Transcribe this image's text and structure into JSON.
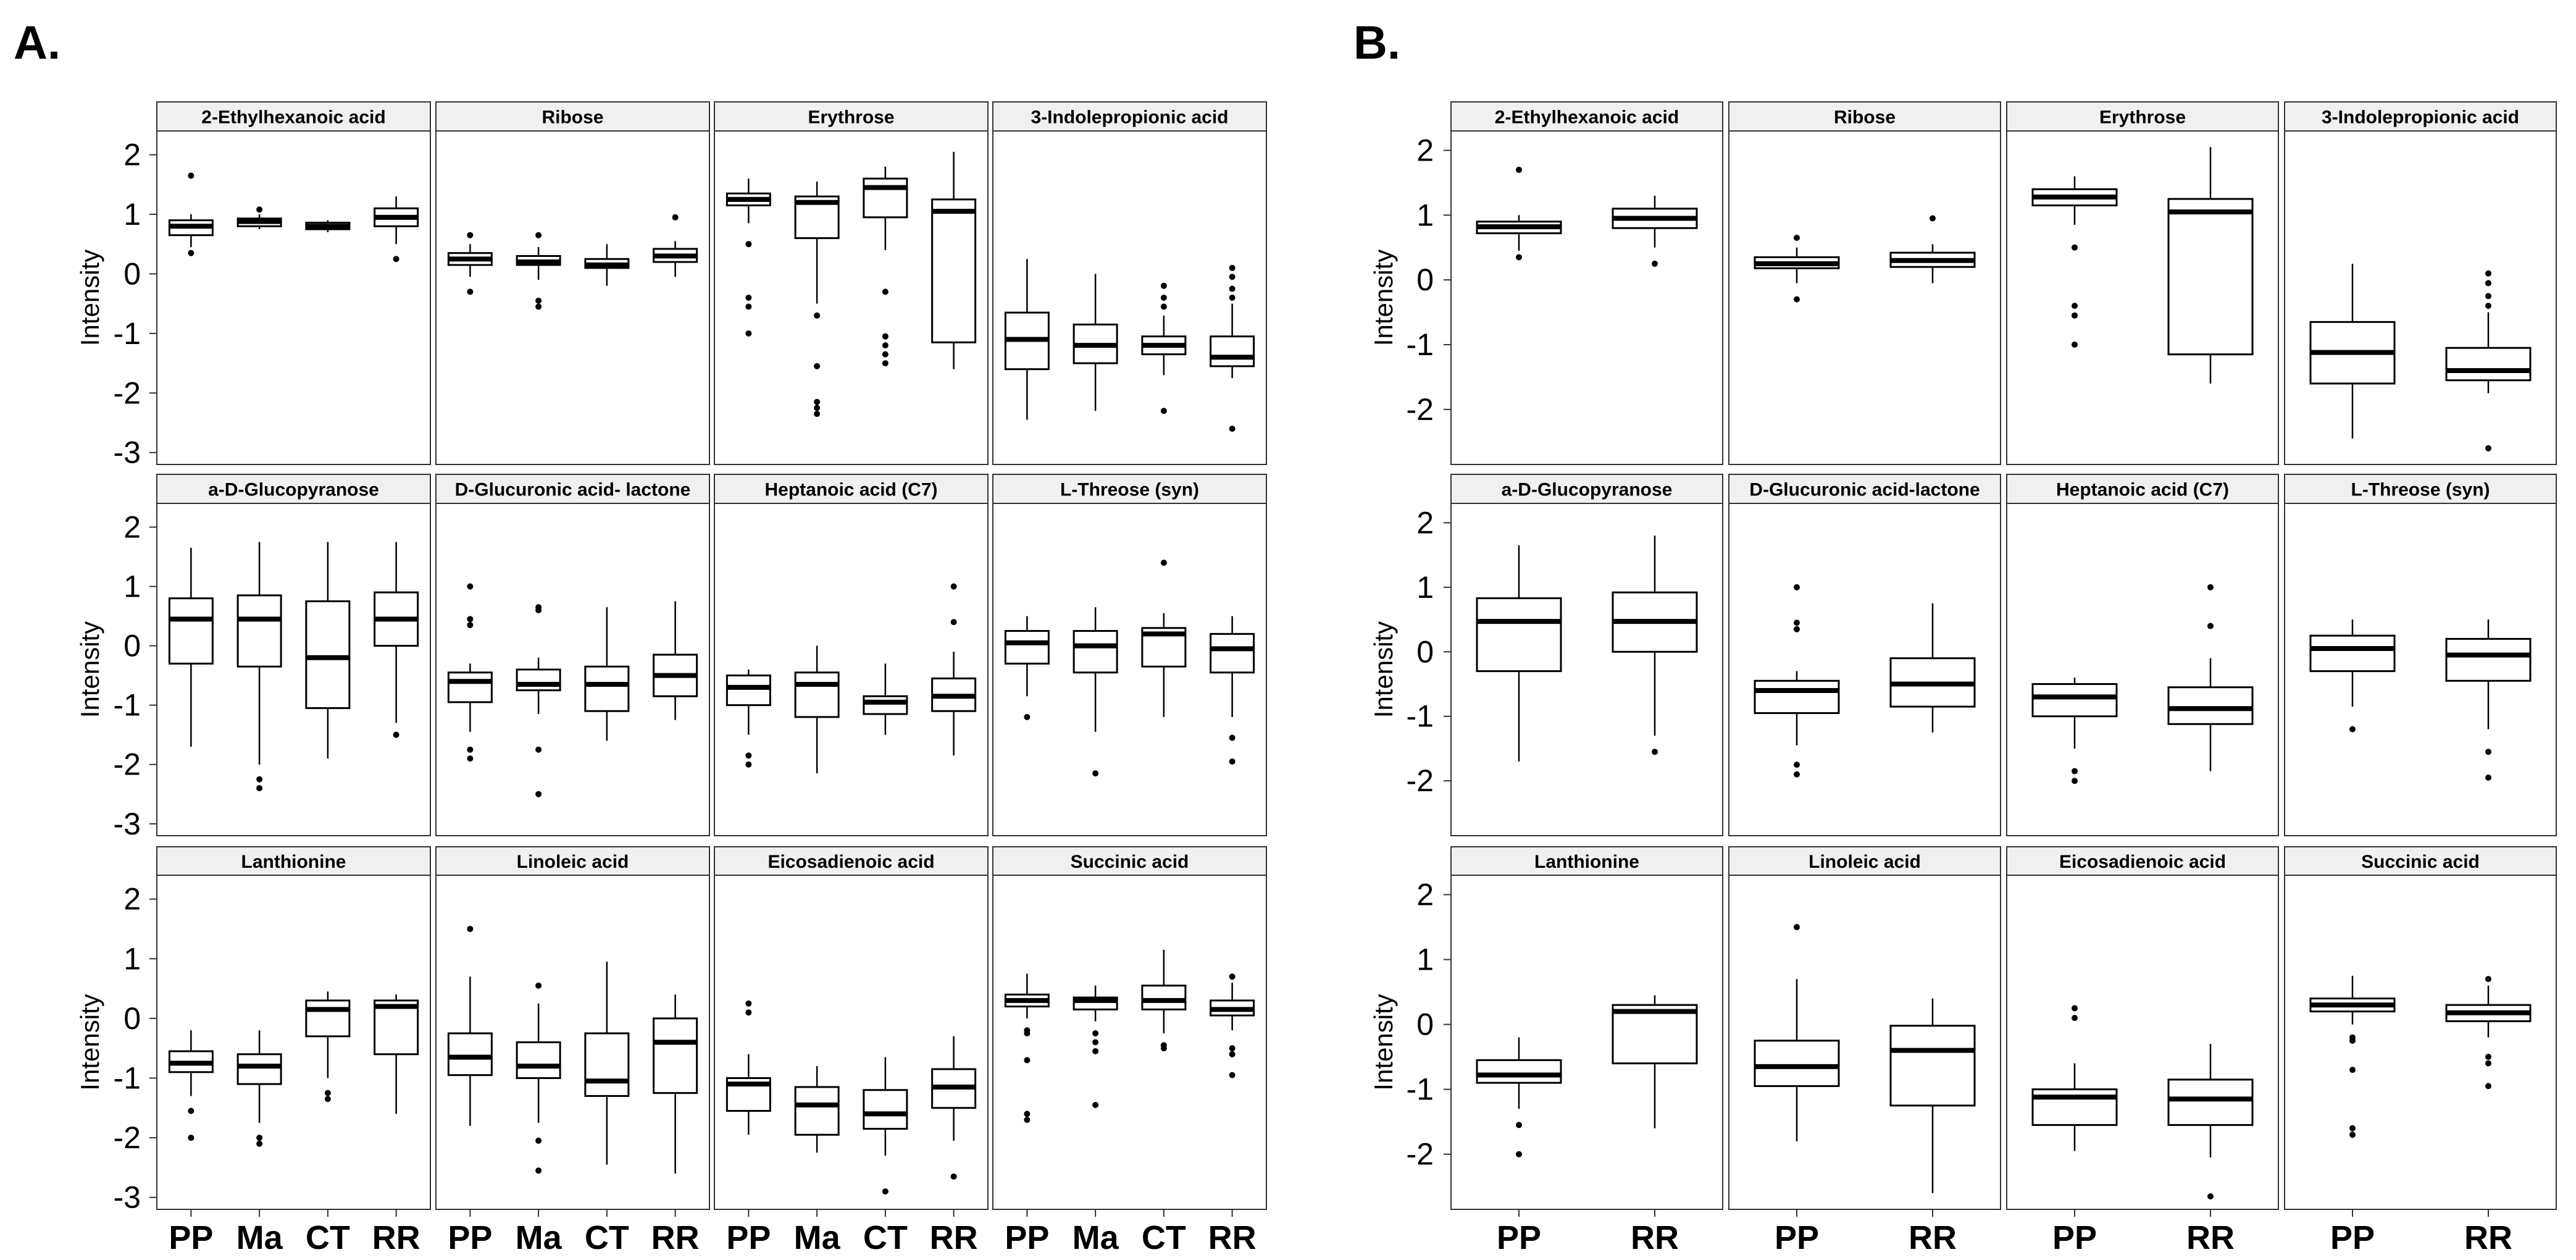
{
  "figure": {
    "panel_labels": [
      "A.",
      "B."
    ]
  },
  "chart_data": [
    {
      "type": "boxplot",
      "panel": "A.",
      "ylabel": "Intensity",
      "ylim": [
        -3.2,
        2.4
      ],
      "yticks": [
        -3,
        -2,
        -1,
        0,
        1,
        2
      ],
      "groups": [
        "PP",
        "Ma",
        "CT",
        "RR"
      ],
      "facets": [
        {
          "title": "2-Ethylhexanoic acid",
          "boxes": [
            {
              "q1": 0.65,
              "median": 0.8,
              "q3": 0.9,
              "lo": 0.45,
              "hi": 1.0,
              "out": [
                1.65,
                0.35
              ]
            },
            {
              "q1": 0.8,
              "median": 0.88,
              "q3": 0.93,
              "lo": 0.75,
              "hi": 1.0,
              "out": [
                1.08
              ]
            },
            {
              "q1": 0.75,
              "median": 0.8,
              "q3": 0.86,
              "lo": 0.7,
              "hi": 0.9,
              "out": []
            },
            {
              "q1": 0.8,
              "median": 0.95,
              "q3": 1.1,
              "lo": 0.5,
              "hi": 1.3,
              "out": [
                0.25
              ]
            }
          ]
        },
        {
          "title": "Ribose",
          "boxes": [
            {
              "q1": 0.15,
              "median": 0.25,
              "q3": 0.35,
              "lo": -0.05,
              "hi": 0.5,
              "out": [
                0.65,
                -0.3
              ]
            },
            {
              "q1": 0.15,
              "median": 0.2,
              "q3": 0.3,
              "lo": -0.1,
              "hi": 0.45,
              "out": [
                0.65,
                -0.45,
                -0.55
              ]
            },
            {
              "q1": 0.1,
              "median": 0.15,
              "q3": 0.25,
              "lo": -0.2,
              "hi": 0.5,
              "out": []
            },
            {
              "q1": 0.2,
              "median": 0.3,
              "q3": 0.42,
              "lo": -0.05,
              "hi": 0.55,
              "out": [
                0.95
              ]
            }
          ]
        },
        {
          "title": "Erythrose",
          "boxes": [
            {
              "q1": 1.15,
              "median": 1.25,
              "q3": 1.35,
              "lo": 0.85,
              "hi": 1.6,
              "out": [
                0.5,
                -0.4,
                -0.55,
                -1.0
              ]
            },
            {
              "q1": 0.6,
              "median": 1.2,
              "q3": 1.3,
              "lo": -0.5,
              "hi": 1.55,
              "out": [
                -0.7,
                -1.55,
                -2.15,
                -2.25,
                -2.35
              ]
            },
            {
              "q1": 0.95,
              "median": 1.45,
              "q3": 1.6,
              "lo": 0.4,
              "hi": 1.8,
              "out": [
                -0.3,
                -1.05,
                -1.2,
                -1.35,
                -1.5
              ]
            },
            {
              "q1": -1.15,
              "median": 1.05,
              "q3": 1.25,
              "lo": -1.6,
              "hi": 2.05,
              "out": []
            }
          ]
        },
        {
          "title": "3-Indolepropionic acid",
          "boxes": [
            {
              "q1": -1.6,
              "median": -1.1,
              "q3": -0.65,
              "lo": -2.45,
              "hi": 0.25,
              "out": []
            },
            {
              "q1": -1.5,
              "median": -1.2,
              "q3": -0.85,
              "lo": -2.3,
              "hi": 0.0,
              "out": []
            },
            {
              "q1": -1.35,
              "median": -1.2,
              "q3": -1.05,
              "lo": -1.7,
              "hi": -0.7,
              "out": [
                -0.2,
                -0.4,
                -0.55,
                -2.3
              ]
            },
            {
              "q1": -1.55,
              "median": -1.4,
              "q3": -1.05,
              "lo": -1.75,
              "hi": -0.5,
              "out": [
                0.1,
                -0.05,
                -0.25,
                -0.4,
                -2.6
              ]
            }
          ]
        },
        {
          "title": "a-D-Glucopyranose",
          "boxes": [
            {
              "q1": -0.3,
              "median": 0.45,
              "q3": 0.8,
              "lo": -1.7,
              "hi": 1.65,
              "out": []
            },
            {
              "q1": -0.35,
              "median": 0.45,
              "q3": 0.85,
              "lo": -2.0,
              "hi": 1.75,
              "out": [
                -2.25,
                -2.4
              ]
            },
            {
              "q1": -1.05,
              "median": -0.2,
              "q3": 0.75,
              "lo": -1.9,
              "hi": 1.75,
              "out": []
            },
            {
              "q1": 0.0,
              "median": 0.45,
              "q3": 0.9,
              "lo": -1.3,
              "hi": 1.75,
              "out": [
                -1.5
              ]
            }
          ]
        },
        {
          "title": "D-Glucuronic acid- lactone",
          "boxes": [
            {
              "q1": -0.95,
              "median": -0.6,
              "q3": -0.45,
              "lo": -1.45,
              "hi": -0.3,
              "out": [
                1.0,
                0.45,
                0.35,
                -1.75,
                -1.9
              ]
            },
            {
              "q1": -0.75,
              "median": -0.65,
              "q3": -0.4,
              "lo": -1.15,
              "hi": -0.2,
              "out": [
                0.65,
                0.6,
                -1.75,
                -2.5
              ]
            },
            {
              "q1": -1.1,
              "median": -0.65,
              "q3": -0.35,
              "lo": -1.6,
              "hi": 0.65,
              "out": []
            },
            {
              "q1": -0.85,
              "median": -0.5,
              "q3": -0.15,
              "lo": -1.25,
              "hi": 0.75,
              "out": []
            }
          ]
        },
        {
          "title": "Heptanoic acid (C7)",
          "boxes": [
            {
              "q1": -1.0,
              "median": -0.7,
              "q3": -0.5,
              "lo": -1.5,
              "hi": -0.4,
              "out": [
                -1.85,
                -2.0
              ]
            },
            {
              "q1": -1.2,
              "median": -0.65,
              "q3": -0.45,
              "lo": -2.15,
              "hi": 0.0,
              "out": []
            },
            {
              "q1": -1.15,
              "median": -0.95,
              "q3": -0.85,
              "lo": -1.5,
              "hi": -0.3,
              "out": []
            },
            {
              "q1": -1.1,
              "median": -0.85,
              "q3": -0.55,
              "lo": -1.85,
              "hi": -0.1,
              "out": [
                1.0,
                0.4
              ]
            }
          ]
        },
        {
          "title": "L-Threose (syn)",
          "boxes": [
            {
              "q1": -0.3,
              "median": 0.05,
              "q3": 0.25,
              "lo": -0.85,
              "hi": 0.5,
              "out": [
                -1.2
              ]
            },
            {
              "q1": -0.45,
              "median": 0.0,
              "q3": 0.25,
              "lo": -1.45,
              "hi": 0.65,
              "out": [
                -2.15
              ]
            },
            {
              "q1": -0.35,
              "median": 0.2,
              "q3": 0.3,
              "lo": -1.2,
              "hi": 0.55,
              "out": [
                1.4
              ]
            },
            {
              "q1": -0.45,
              "median": -0.05,
              "q3": 0.2,
              "lo": -1.2,
              "hi": 0.5,
              "out": [
                -1.55,
                -1.95
              ]
            }
          ]
        },
        {
          "title": "Lanthionine",
          "boxes": [
            {
              "q1": -0.9,
              "median": -0.75,
              "q3": -0.55,
              "lo": -1.3,
              "hi": -0.2,
              "out": [
                -1.55,
                -2.0
              ]
            },
            {
              "q1": -1.1,
              "median": -0.8,
              "q3": -0.6,
              "lo": -1.75,
              "hi": -0.2,
              "out": [
                -2.0,
                -2.1
              ]
            },
            {
              "q1": -0.3,
              "median": 0.15,
              "q3": 0.3,
              "lo": -1.0,
              "hi": 0.45,
              "out": [
                -1.25,
                -1.35
              ]
            },
            {
              "q1": -0.6,
              "median": 0.2,
              "q3": 0.3,
              "lo": -1.6,
              "hi": 0.4,
              "out": []
            }
          ]
        },
        {
          "title": "Linoleic acid",
          "boxes": [
            {
              "q1": -0.95,
              "median": -0.65,
              "q3": -0.25,
              "lo": -1.8,
              "hi": 0.7,
              "out": [
                1.5
              ]
            },
            {
              "q1": -1.0,
              "median": -0.8,
              "q3": -0.4,
              "lo": -1.75,
              "hi": 0.25,
              "out": [
                0.55,
                -2.05,
                -2.55
              ]
            },
            {
              "q1": -1.3,
              "median": -1.05,
              "q3": -0.25,
              "lo": -2.45,
              "hi": 0.95,
              "out": []
            },
            {
              "q1": -1.25,
              "median": -0.4,
              "q3": 0.0,
              "lo": -2.6,
              "hi": 0.4,
              "out": []
            }
          ]
        },
        {
          "title": "Eicosadienoic acid",
          "boxes": [
            {
              "q1": -1.55,
              "median": -1.1,
              "q3": -1.0,
              "lo": -1.95,
              "hi": -0.6,
              "out": [
                0.25,
                0.1
              ]
            },
            {
              "q1": -1.95,
              "median": -1.45,
              "q3": -1.15,
              "lo": -2.25,
              "hi": -0.8,
              "out": []
            },
            {
              "q1": -1.85,
              "median": -1.6,
              "q3": -1.2,
              "lo": -2.3,
              "hi": -0.65,
              "out": [
                -2.9
              ]
            },
            {
              "q1": -1.5,
              "median": -1.15,
              "q3": -0.85,
              "lo": -2.05,
              "hi": -0.3,
              "out": [
                -2.65
              ]
            }
          ]
        },
        {
          "title": "Succinic acid",
          "boxes": [
            {
              "q1": 0.2,
              "median": 0.3,
              "q3": 0.4,
              "lo": 0.0,
              "hi": 0.75,
              "out": [
                -0.2,
                -0.25,
                -0.7,
                -1.6,
                -1.7
              ]
            },
            {
              "q1": 0.15,
              "median": 0.3,
              "q3": 0.35,
              "lo": -0.05,
              "hi": 0.55,
              "out": [
                -0.25,
                -0.4,
                -0.55,
                -1.45
              ]
            },
            {
              "q1": 0.15,
              "median": 0.3,
              "q3": 0.55,
              "lo": -0.25,
              "hi": 1.15,
              "out": [
                -0.45,
                -0.5
              ]
            },
            {
              "q1": 0.05,
              "median": 0.15,
              "q3": 0.3,
              "lo": -0.2,
              "hi": 0.6,
              "out": [
                0.7,
                -0.5,
                -0.6,
                -0.95
              ]
            }
          ]
        }
      ]
    },
    {
      "type": "boxplot",
      "panel": "B.",
      "ylabel": "Intensity",
      "ylim": [
        -2.85,
        2.3
      ],
      "yticks": [
        -2,
        -1,
        0,
        1,
        2
      ],
      "groups": [
        "PP",
        "RR"
      ],
      "facets": [
        {
          "title": "2-Ethylhexanoic acid",
          "boxes": [
            {
              "q1": 0.72,
              "median": 0.82,
              "q3": 0.9,
              "lo": 0.45,
              "hi": 1.0,
              "out": [
                1.7,
                0.35
              ]
            },
            {
              "q1": 0.8,
              "median": 0.95,
              "q3": 1.1,
              "lo": 0.5,
              "hi": 1.3,
              "out": [
                0.25
              ]
            }
          ]
        },
        {
          "title": "Ribose",
          "boxes": [
            {
              "q1": 0.18,
              "median": 0.25,
              "q3": 0.35,
              "lo": -0.05,
              "hi": 0.5,
              "out": [
                0.65,
                -0.3
              ]
            },
            {
              "q1": 0.2,
              "median": 0.3,
              "q3": 0.42,
              "lo": -0.05,
              "hi": 0.55,
              "out": [
                0.95
              ]
            }
          ]
        },
        {
          "title": "Erythrose",
          "boxes": [
            {
              "q1": 1.15,
              "median": 1.28,
              "q3": 1.4,
              "lo": 0.85,
              "hi": 1.6,
              "out": [
                0.5,
                -0.4,
                -0.55,
                -1.0
              ]
            },
            {
              "q1": -1.15,
              "median": 1.05,
              "q3": 1.25,
              "lo": -1.6,
              "hi": 2.05,
              "out": []
            }
          ]
        },
        {
          "title": "3-Indolepropionic acid",
          "boxes": [
            {
              "q1": -1.6,
              "median": -1.12,
              "q3": -0.65,
              "lo": -2.45,
              "hi": 0.25,
              "out": []
            },
            {
              "q1": -1.55,
              "median": -1.4,
              "q3": -1.05,
              "lo": -1.75,
              "hi": -0.5,
              "out": [
                0.1,
                -0.05,
                -0.25,
                -0.4,
                -2.6
              ]
            }
          ]
        },
        {
          "title": "a-D-Glucopyranose",
          "boxes": [
            {
              "q1": -0.3,
              "median": 0.47,
              "q3": 0.83,
              "lo": -1.7,
              "hi": 1.65,
              "out": []
            },
            {
              "q1": 0.0,
              "median": 0.47,
              "q3": 0.92,
              "lo": -1.3,
              "hi": 1.8,
              "out": [
                -1.55
              ]
            }
          ]
        },
        {
          "title": "D-Glucuronic acid-lactone",
          "boxes": [
            {
              "q1": -0.95,
              "median": -0.6,
              "q3": -0.45,
              "lo": -1.45,
              "hi": -0.3,
              "out": [
                1.0,
                0.45,
                0.35,
                -1.75,
                -1.9
              ]
            },
            {
              "q1": -0.85,
              "median": -0.5,
              "q3": -0.1,
              "lo": -1.25,
              "hi": 0.75,
              "out": []
            }
          ]
        },
        {
          "title": "Heptanoic acid (C7)",
          "boxes": [
            {
              "q1": -1.0,
              "median": -0.7,
              "q3": -0.5,
              "lo": -1.5,
              "hi": -0.4,
              "out": [
                -1.85,
                -2.0
              ]
            },
            {
              "q1": -1.12,
              "median": -0.88,
              "q3": -0.55,
              "lo": -1.85,
              "hi": -0.1,
              "out": [
                1.0,
                0.4
              ]
            }
          ]
        },
        {
          "title": "L-Threose (syn)",
          "boxes": [
            {
              "q1": -0.3,
              "median": 0.05,
              "q3": 0.25,
              "lo": -0.85,
              "hi": 0.5,
              "out": [
                -1.2
              ]
            },
            {
              "q1": -0.45,
              "median": -0.05,
              "q3": 0.2,
              "lo": -1.2,
              "hi": 0.5,
              "out": [
                -1.55,
                -1.95
              ]
            }
          ]
        },
        {
          "title": "Lanthionine",
          "boxes": [
            {
              "q1": -0.9,
              "median": -0.78,
              "q3": -0.55,
              "lo": -1.3,
              "hi": -0.2,
              "out": [
                -1.55,
                -2.0
              ]
            },
            {
              "q1": -0.6,
              "median": 0.2,
              "q3": 0.3,
              "lo": -1.6,
              "hi": 0.45,
              "out": []
            }
          ]
        },
        {
          "title": "Linoleic acid",
          "boxes": [
            {
              "q1": -0.95,
              "median": -0.65,
              "q3": -0.25,
              "lo": -1.8,
              "hi": 0.7,
              "out": [
                1.5
              ]
            },
            {
              "q1": -1.25,
              "median": -0.4,
              "q3": -0.02,
              "lo": -2.6,
              "hi": 0.4,
              "out": []
            }
          ]
        },
        {
          "title": "Eicosadienoic acid",
          "boxes": [
            {
              "q1": -1.55,
              "median": -1.12,
              "q3": -1.0,
              "lo": -1.95,
              "hi": -0.6,
              "out": [
                0.25,
                0.1
              ]
            },
            {
              "q1": -1.55,
              "median": -1.15,
              "q3": -0.85,
              "lo": -2.05,
              "hi": -0.3,
              "out": [
                -2.65
              ]
            }
          ]
        },
        {
          "title": "Succinic acid",
          "boxes": [
            {
              "q1": 0.2,
              "median": 0.3,
              "q3": 0.4,
              "lo": 0.0,
              "hi": 0.75,
              "out": [
                -0.2,
                -0.25,
                -0.7,
                -1.6,
                -1.7
              ]
            },
            {
              "q1": 0.05,
              "median": 0.18,
              "q3": 0.3,
              "lo": -0.2,
              "hi": 0.6,
              "out": [
                0.7,
                -0.5,
                -0.6,
                -0.95
              ]
            }
          ]
        }
      ]
    }
  ]
}
